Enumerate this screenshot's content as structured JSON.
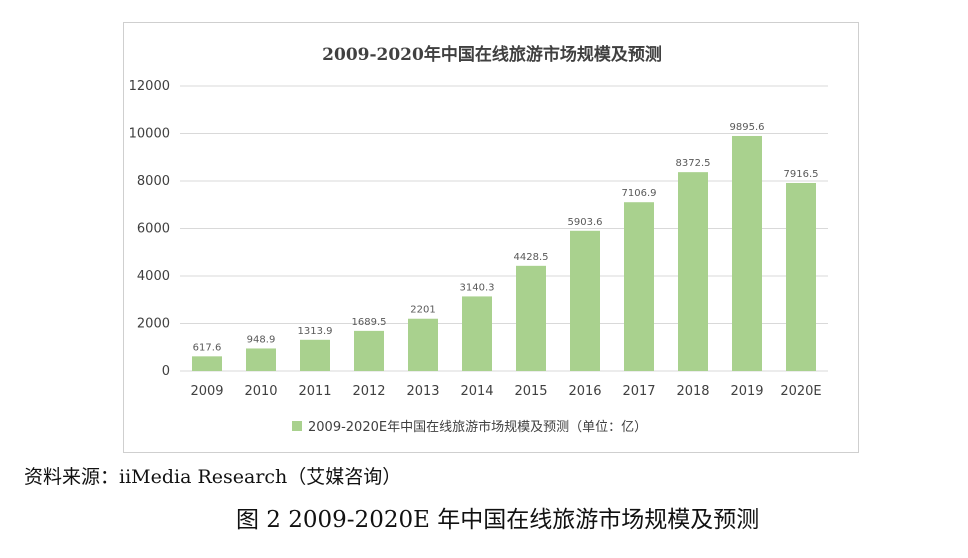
{
  "chart_data": {
    "type": "bar",
    "title": "2009-2020年中国在线旅游市场规模及预测",
    "categories": [
      "2009",
      "2010",
      "2011",
      "2012",
      "2013",
      "2014",
      "2015",
      "2016",
      "2017",
      "2018",
      "2019",
      "2020E"
    ],
    "series": [
      {
        "name": "2009-2020E年中国在线旅游市场规模及预测（单位：亿）",
        "values": [
          617.6,
          948.9,
          1313.9,
          1689.5,
          2201,
          3140.3,
          4428.5,
          5903.6,
          7106.9,
          8372.5,
          9895.6,
          7916.5
        ],
        "labels": [
          "617.6",
          "948.9",
          "1313.9",
          "1689.5",
          "2201",
          "3140.3",
          "4428.5",
          "5903.6",
          "7106.9",
          "8372.5",
          "9895.6",
          "7916.5"
        ]
      }
    ],
    "yticks": [
      0,
      2000,
      4000,
      6000,
      8000,
      10000,
      12000
    ],
    "ylim": [
      0,
      12000
    ],
    "xlabel": "",
    "ylabel": "",
    "legend": "bottom",
    "grid": true
  },
  "colors": {
    "bar": "#a9d18e",
    "grid": "#d9d9d9",
    "axis": "#d9d9d9"
  },
  "source_note": "资料来源：iiMedia Research（艾媒咨询）",
  "figure_caption": "图 2  2009-2020E 年中国在线旅游市场规模及预测"
}
